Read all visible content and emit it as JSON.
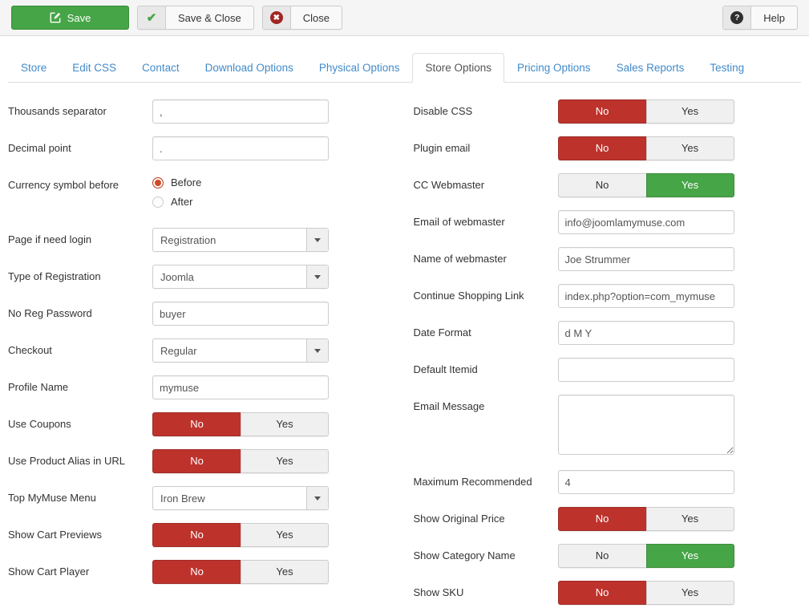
{
  "toolbar": {
    "save_label": "Save",
    "save_close_label": "Save & Close",
    "close_label": "Close",
    "help_label": "Help"
  },
  "colors": {
    "accent_green": "#46a546",
    "accent_red": "#bd332c",
    "link_blue": "#428bca",
    "radio_orange": "#cd4a24"
  },
  "tabs": [
    {
      "name": "store",
      "label": "Store",
      "active": false
    },
    {
      "name": "edit-css",
      "label": "Edit CSS",
      "active": false
    },
    {
      "name": "contact",
      "label": "Contact",
      "active": false
    },
    {
      "name": "download-options",
      "label": "Download Options",
      "active": false
    },
    {
      "name": "physical-options",
      "label": "Physical Options",
      "active": false
    },
    {
      "name": "store-options",
      "label": "Store Options",
      "active": true
    },
    {
      "name": "pricing-options",
      "label": "Pricing Options",
      "active": false
    },
    {
      "name": "sales-reports",
      "label": "Sales Reports",
      "active": false
    },
    {
      "name": "testing",
      "label": "Testing",
      "active": false
    }
  ],
  "form": {
    "left_fields": [
      {
        "name": "thousands-separator",
        "label": "Thousands separator",
        "type": "text",
        "value": ","
      },
      {
        "name": "decimal-point",
        "label": "Decimal point",
        "type": "text",
        "value": "."
      },
      {
        "name": "currency-symbol-before",
        "label": "Currency symbol before",
        "type": "radio",
        "options": [
          "Before",
          "After"
        ],
        "value": "Before"
      },
      {
        "name": "page-if-need-login",
        "label": "Page if need login",
        "type": "select",
        "value": "Registration"
      },
      {
        "name": "type-of-registration",
        "label": "Type of Registration",
        "type": "select",
        "value": "Joomla"
      },
      {
        "name": "no-reg-password",
        "label": "No Reg Password",
        "type": "text",
        "value": "buyer"
      },
      {
        "name": "checkout",
        "label": "Checkout",
        "type": "select",
        "value": "Regular"
      },
      {
        "name": "profile-name",
        "label": "Profile Name",
        "type": "text",
        "value": "mymuse"
      },
      {
        "name": "use-coupons",
        "label": "Use Coupons",
        "type": "toggle",
        "options": [
          "No",
          "Yes"
        ],
        "value": "No"
      },
      {
        "name": "use-product-alias-in-url",
        "label": "Use Product Alias in URL",
        "type": "toggle",
        "options": [
          "No",
          "Yes"
        ],
        "value": "No"
      },
      {
        "name": "top-mymuse-menu",
        "label": "Top MyMuse Menu",
        "type": "select",
        "value": "Iron Brew"
      },
      {
        "name": "show-cart-previews",
        "label": "Show Cart Previews",
        "type": "toggle",
        "options": [
          "No",
          "Yes"
        ],
        "value": "No"
      },
      {
        "name": "show-cart-player",
        "label": "Show Cart Player",
        "type": "toggle",
        "options": [
          "No",
          "Yes"
        ],
        "value": "No"
      }
    ],
    "right_fields": [
      {
        "name": "disable-css",
        "label": "Disable CSS",
        "type": "toggle",
        "options": [
          "No",
          "Yes"
        ],
        "value": "No"
      },
      {
        "name": "plugin-email",
        "label": "Plugin email",
        "type": "toggle",
        "options": [
          "No",
          "Yes"
        ],
        "value": "No"
      },
      {
        "name": "cc-webmaster",
        "label": "CC Webmaster",
        "type": "toggle",
        "options": [
          "No",
          "Yes"
        ],
        "value": "Yes"
      },
      {
        "name": "email-of-webmaster",
        "label": "Email of webmaster",
        "type": "text",
        "value": "info@joomlamymuse.com"
      },
      {
        "name": "name-of-webmaster",
        "label": "Name of webmaster",
        "type": "text",
        "value": "Joe Strummer"
      },
      {
        "name": "continue-shopping-link",
        "label": "Continue Shopping Link",
        "type": "text",
        "value": "index.php?option=com_mymuse"
      },
      {
        "name": "date-format",
        "label": "Date Format",
        "type": "text",
        "value": "d M Y"
      },
      {
        "name": "default-itemid",
        "label": "Default Itemid",
        "type": "text",
        "value": ""
      },
      {
        "name": "email-message",
        "label": "Email Message",
        "type": "textarea",
        "value": ""
      },
      {
        "name": "maximum-recommended",
        "label": "Maximum Recommended",
        "type": "text",
        "value": "4"
      },
      {
        "name": "show-original-price",
        "label": "Show Original Price",
        "type": "toggle",
        "options": [
          "No",
          "Yes"
        ],
        "value": "No"
      },
      {
        "name": "show-category-name",
        "label": "Show Category Name",
        "type": "toggle",
        "options": [
          "No",
          "Yes"
        ],
        "value": "Yes"
      },
      {
        "name": "show-sku",
        "label": "Show SKU",
        "type": "toggle",
        "options": [
          "No",
          "Yes"
        ],
        "value": "No"
      }
    ]
  }
}
